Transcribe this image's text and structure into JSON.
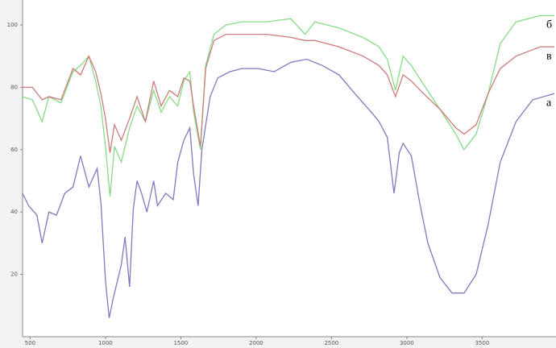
{
  "chart_data": {
    "type": "line",
    "xlim": [
      450,
      3990
    ],
    "ylim": [
      0,
      108
    ],
    "xticks": [
      500,
      1000,
      1500,
      2000,
      2500,
      3000,
      3500
    ],
    "yticks": [
      20,
      40,
      60,
      80,
      100
    ],
    "grid": false,
    "series": [
      {
        "name": "а",
        "color": "#7b7bbd",
        "x": [
          450,
          490,
          545,
          580,
          625,
          675,
          730,
          785,
          835,
          890,
          945,
          970,
          1000,
          1025,
          1050,
          1080,
          1105,
          1130,
          1160,
          1185,
          1210,
          1240,
          1275,
          1320,
          1345,
          1400,
          1450,
          1480,
          1520,
          1560,
          1585,
          1615,
          1640,
          1695,
          1745,
          1825,
          1905,
          2015,
          2120,
          2230,
          2335,
          2440,
          2550,
          2655,
          2765,
          2815,
          2870,
          2915,
          2950,
          2975,
          3030,
          3085,
          3140,
          3220,
          3300,
          3380,
          3460,
          3540,
          3620,
          3725,
          3835,
          3980
        ],
        "values": [
          46,
          42,
          39,
          30,
          40,
          39,
          46,
          48,
          58,
          48,
          54,
          43,
          18,
          6,
          12,
          18,
          23,
          32,
          16,
          41,
          50,
          46,
          40,
          50,
          42,
          46,
          44,
          56,
          63,
          67,
          52,
          42,
          60,
          77,
          83,
          85,
          86,
          86,
          85,
          88,
          89,
          87,
          84,
          78,
          72,
          69,
          64,
          46,
          59,
          62,
          58,
          43,
          30,
          19,
          14,
          14,
          20,
          36,
          56,
          69,
          76,
          78
        ]
      },
      {
        "name": "б",
        "color": "#86dc86",
        "x": [
          450,
          515,
          580,
          625,
          705,
          785,
          835,
          890,
          935,
          970,
          1000,
          1030,
          1060,
          1105,
          1160,
          1210,
          1265,
          1320,
          1370,
          1425,
          1480,
          1520,
          1560,
          1585,
          1630,
          1665,
          1720,
          1800,
          1905,
          2070,
          2230,
          2325,
          2390,
          2550,
          2710,
          2815,
          2870,
          2925,
          2975,
          3030,
          3110,
          3220,
          3325,
          3380,
          3460,
          3540,
          3620,
          3725,
          3885,
          3980
        ],
        "values": [
          77,
          76,
          69,
          77,
          75,
          85,
          87,
          90,
          82,
          74,
          61,
          45,
          61,
          56,
          67,
          74,
          69,
          79,
          72,
          77,
          74,
          82,
          85,
          72,
          60,
          87,
          97,
          100,
          101,
          101,
          102,
          97,
          101,
          99,
          96,
          93,
          89,
          79,
          90,
          87,
          81,
          73,
          65,
          60,
          65,
          78,
          94,
          101,
          103,
          103
        ]
      },
      {
        "name": "в",
        "color": "#cc7b7b",
        "x": [
          450,
          515,
          580,
          625,
          705,
          785,
          835,
          890,
          935,
          970,
          1000,
          1030,
          1060,
          1105,
          1160,
          1210,
          1265,
          1320,
          1370,
          1425,
          1480,
          1520,
          1560,
          1585,
          1630,
          1665,
          1720,
          1800,
          1905,
          2070,
          2230,
          2325,
          2390,
          2550,
          2710,
          2815,
          2870,
          2925,
          2975,
          3030,
          3110,
          3220,
          3325,
          3380,
          3460,
          3540,
          3620,
          3725,
          3885,
          3980
        ],
        "values": [
          80,
          80,
          76,
          77,
          76,
          86,
          84,
          90,
          85,
          78,
          70,
          59,
          68,
          63,
          70,
          77,
          69,
          82,
          74,
          79,
          77,
          83,
          82,
          74,
          61,
          86,
          95,
          97,
          97,
          97,
          96,
          95,
          95,
          93,
          90,
          87,
          84,
          77,
          84,
          82,
          78,
          73,
          67,
          65,
          68,
          78,
          86,
          90,
          93,
          93
        ]
      }
    ]
  }
}
